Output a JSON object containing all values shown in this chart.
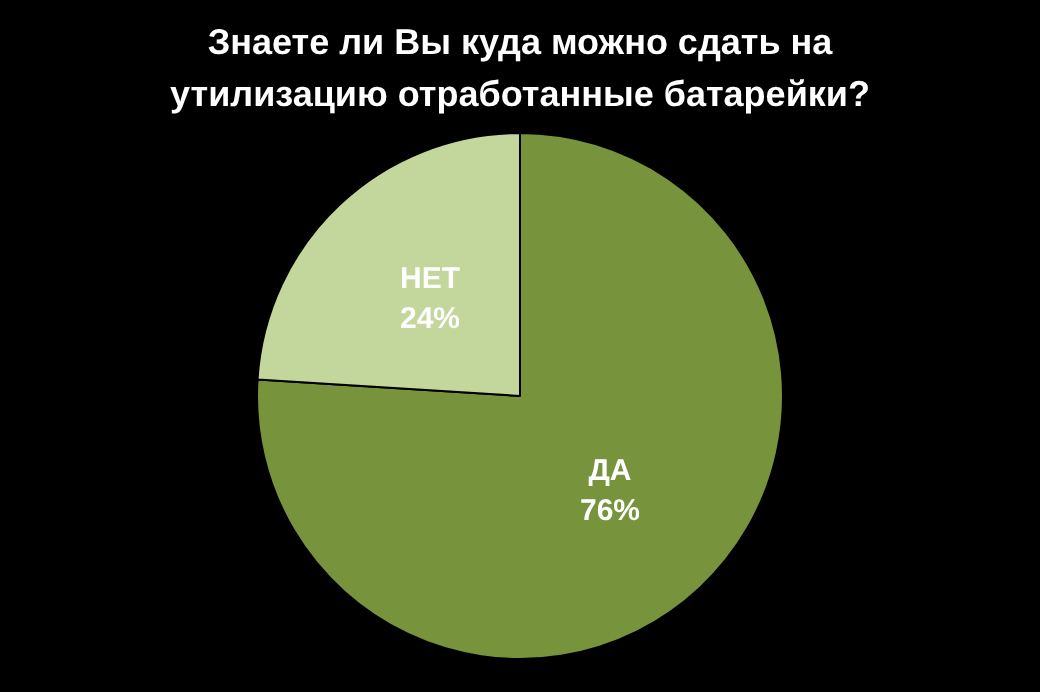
{
  "chart_data": {
    "type": "pie",
    "title": "Знаете ли Вы куда можно сдать на утилизацию отработанные батарейки?",
    "categories": [
      "ДА",
      "НЕТ"
    ],
    "values": [
      76,
      24
    ],
    "value_labels": [
      "76%",
      "24%"
    ],
    "colors": [
      "#77933c",
      "#c3d69b"
    ],
    "legend": false
  }
}
